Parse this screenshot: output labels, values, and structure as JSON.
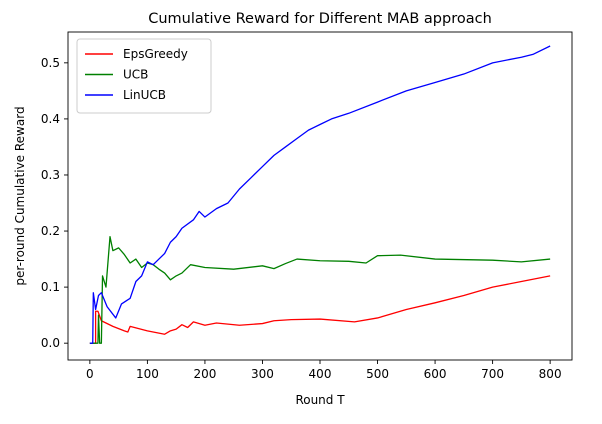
{
  "chart_data": {
    "type": "line",
    "title": "Cumulative Reward for Different MAB approach",
    "xlabel": "Round T",
    "ylabel": "per-round Cumulative Reward",
    "xlim": [
      -38,
      838
    ],
    "ylim": [
      -0.03,
      0.555
    ],
    "xticks": [
      0,
      100,
      200,
      300,
      400,
      500,
      600,
      700,
      800
    ],
    "yticks": [
      0.0,
      0.1,
      0.2,
      0.3,
      0.4,
      0.5
    ],
    "ytick_labels": [
      "0.0",
      "0.1",
      "0.2",
      "0.3",
      "0.4",
      "0.5"
    ],
    "grid": false,
    "legend_position": "top-left",
    "series": [
      {
        "name": "EpsGreedy",
        "color": "#ff0000",
        "points": [
          [
            0,
            0
          ],
          [
            10,
            0
          ],
          [
            10,
            0.057
          ],
          [
            14,
            0.057
          ],
          [
            20,
            0.04
          ],
          [
            40,
            0.03
          ],
          [
            60,
            0.022
          ],
          [
            66,
            0.02
          ],
          [
            70,
            0.03
          ],
          [
            100,
            0.022
          ],
          [
            130,
            0.016
          ],
          [
            140,
            0.022
          ],
          [
            150,
            0.025
          ],
          [
            160,
            0.033
          ],
          [
            170,
            0.028
          ],
          [
            180,
            0.038
          ],
          [
            200,
            0.032
          ],
          [
            220,
            0.036
          ],
          [
            260,
            0.032
          ],
          [
            300,
            0.035
          ],
          [
            320,
            0.04
          ],
          [
            350,
            0.042
          ],
          [
            400,
            0.043
          ],
          [
            460,
            0.038
          ],
          [
            500,
            0.045
          ],
          [
            550,
            0.06
          ],
          [
            600,
            0.072
          ],
          [
            650,
            0.085
          ],
          [
            700,
            0.1
          ],
          [
            750,
            0.11
          ],
          [
            800,
            0.12
          ]
        ]
      },
      {
        "name": "UCB",
        "color": "#008000",
        "points": [
          [
            0,
            0
          ],
          [
            14,
            0
          ],
          [
            15,
            0.05
          ],
          [
            17,
            0
          ],
          [
            20,
            0
          ],
          [
            22,
            0.12
          ],
          [
            28,
            0.1
          ],
          [
            35,
            0.19
          ],
          [
            40,
            0.165
          ],
          [
            50,
            0.17
          ],
          [
            60,
            0.158
          ],
          [
            70,
            0.143
          ],
          [
            80,
            0.15
          ],
          [
            90,
            0.135
          ],
          [
            100,
            0.143
          ],
          [
            110,
            0.14
          ],
          [
            120,
            0.132
          ],
          [
            130,
            0.125
          ],
          [
            140,
            0.113
          ],
          [
            150,
            0.12
          ],
          [
            160,
            0.125
          ],
          [
            175,
            0.14
          ],
          [
            200,
            0.135
          ],
          [
            250,
            0.132
          ],
          [
            300,
            0.138
          ],
          [
            320,
            0.133
          ],
          [
            340,
            0.142
          ],
          [
            360,
            0.15
          ],
          [
            400,
            0.147
          ],
          [
            450,
            0.146
          ],
          [
            480,
            0.143
          ],
          [
            500,
            0.156
          ],
          [
            540,
            0.157
          ],
          [
            600,
            0.15
          ],
          [
            700,
            0.148
          ],
          [
            750,
            0.145
          ],
          [
            800,
            0.15
          ]
        ]
      },
      {
        "name": "LinUCB",
        "color": "#0000ff",
        "points": [
          [
            0,
            0
          ],
          [
            5,
            0
          ],
          [
            6,
            0.09
          ],
          [
            10,
            0.06
          ],
          [
            15,
            0.085
          ],
          [
            20,
            0.09
          ],
          [
            30,
            0.065
          ],
          [
            45,
            0.045
          ],
          [
            55,
            0.07
          ],
          [
            70,
            0.08
          ],
          [
            80,
            0.11
          ],
          [
            90,
            0.12
          ],
          [
            100,
            0.145
          ],
          [
            110,
            0.14
          ],
          [
            120,
            0.15
          ],
          [
            130,
            0.16
          ],
          [
            140,
            0.18
          ],
          [
            150,
            0.19
          ],
          [
            160,
            0.205
          ],
          [
            180,
            0.22
          ],
          [
            190,
            0.235
          ],
          [
            200,
            0.225
          ],
          [
            220,
            0.24
          ],
          [
            240,
            0.25
          ],
          [
            260,
            0.275
          ],
          [
            280,
            0.295
          ],
          [
            300,
            0.315
          ],
          [
            320,
            0.335
          ],
          [
            340,
            0.35
          ],
          [
            360,
            0.365
          ],
          [
            380,
            0.38
          ],
          [
            400,
            0.39
          ],
          [
            420,
            0.4
          ],
          [
            450,
            0.41
          ],
          [
            500,
            0.43
          ],
          [
            550,
            0.45
          ],
          [
            600,
            0.465
          ],
          [
            650,
            0.48
          ],
          [
            700,
            0.5
          ],
          [
            750,
            0.51
          ],
          [
            770,
            0.515
          ],
          [
            800,
            0.53
          ]
        ]
      }
    ]
  }
}
